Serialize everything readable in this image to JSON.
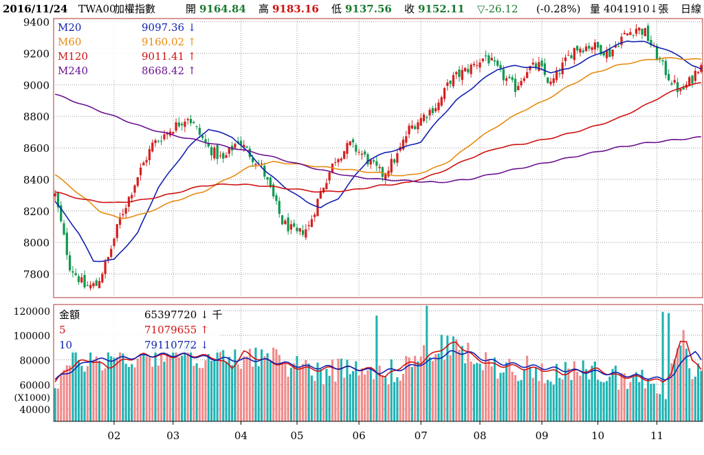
{
  "header": {
    "date": "2016/11/24",
    "symbol": "TWA00",
    "name": "加權指數",
    "open_label": "開",
    "open": "9164.84",
    "high_label": "高",
    "high": "9183.16",
    "low_label": "低",
    "low": "9137.56",
    "close_label": "收",
    "close": "9152.11",
    "change": "▽-26.12",
    "change_pct": "(-0.28%)",
    "volume_label": "量",
    "volume": "4041910↓張",
    "period": "日線"
  },
  "colors": {
    "up": "#d42020",
    "down": "#109a50",
    "up_volume": "#f08a8a",
    "down_volume": "#20b2b2",
    "m20": "#1020b0",
    "m60": "#e88a10",
    "m120": "#d01010",
    "m240": "#6a1090",
    "amt5": "#d01010",
    "amt10": "#1020b0",
    "frame": "#b03030",
    "grid": "#999999"
  },
  "legend_price": [
    {
      "name": "M20",
      "value": "9097.36",
      "arrow": "↓",
      "color": "#1020b0"
    },
    {
      "name": "M60",
      "value": "9160.02",
      "arrow": "↑",
      "color": "#e88a10"
    },
    {
      "name": "M120",
      "value": "9011.41",
      "arrow": "↑",
      "color": "#d01010"
    },
    {
      "name": "M240",
      "value": "8668.42",
      "arrow": "↑",
      "color": "#6a1090"
    }
  ],
  "legend_volume": [
    {
      "name": "金額",
      "value": "65397720",
      "arrow": "↓",
      "unit": "千",
      "color": "#000000"
    },
    {
      "name": "5",
      "value": "71079655",
      "arrow": "↑",
      "unit": "",
      "color": "#d01010"
    },
    {
      "name": "10",
      "value": "79110772",
      "arrow": "↓",
      "unit": "",
      "color": "#1020b0"
    }
  ],
  "chart_data": [
    {
      "type": "candlestick",
      "title": "",
      "yticks": [
        "9400",
        "9200",
        "9000",
        "8800",
        "8600",
        "8400",
        "8200",
        "8000",
        "7800"
      ],
      "ylim": [
        7650,
        9420
      ],
      "grid": true,
      "xtick_labels": [
        "02",
        "03",
        "04",
        "05",
        "06",
        "07",
        "08",
        "09",
        "10",
        "11"
      ],
      "xtick_positions": [
        20,
        40,
        63,
        82,
        103,
        124,
        144,
        165,
        184,
        204
      ],
      "n_bars": 220,
      "key_points": [
        [
          0,
          8300
        ],
        [
          5,
          7850
        ],
        [
          10,
          7720
        ],
        [
          14,
          7730
        ],
        [
          18,
          7900
        ],
        [
          22,
          8150
        ],
        [
          28,
          8420
        ],
        [
          33,
          8620
        ],
        [
          38,
          8700
        ],
        [
          45,
          8800
        ],
        [
          52,
          8600
        ],
        [
          57,
          8520
        ],
        [
          62,
          8650
        ],
        [
          66,
          8560
        ],
        [
          70,
          8480
        ],
        [
          73,
          8330
        ],
        [
          77,
          8130
        ],
        [
          82,
          8050
        ],
        [
          86,
          8100
        ],
        [
          90,
          8320
        ],
        [
          95,
          8530
        ],
        [
          100,
          8620
        ],
        [
          104,
          8560
        ],
        [
          108,
          8480
        ],
        [
          111,
          8430
        ],
        [
          116,
          8550
        ],
        [
          120,
          8720
        ],
        [
          126,
          8820
        ],
        [
          130,
          8880
        ],
        [
          134,
          9030
        ],
        [
          140,
          9100
        ],
        [
          146,
          9180
        ],
        [
          152,
          9050
        ],
        [
          156,
          8980
        ],
        [
          160,
          9100
        ],
        [
          164,
          9120
        ],
        [
          168,
          9000
        ],
        [
          172,
          9120
        ],
        [
          176,
          9230
        ],
        [
          182,
          9250
        ],
        [
          188,
          9200
        ],
        [
          192,
          9300
        ],
        [
          197,
          9360
        ],
        [
          200,
          9330
        ],
        [
          204,
          9180
        ],
        [
          208,
          9050
        ],
        [
          212,
          8950
        ],
        [
          216,
          9040
        ],
        [
          219,
          9152
        ]
      ],
      "series": [
        {
          "name": "M20",
          "points": [
            [
              0,
              8260
            ],
            [
              8,
              8060
            ],
            [
              13,
              7880
            ],
            [
              20,
              7890
            ],
            [
              28,
              8060
            ],
            [
              35,
              8350
            ],
            [
              45,
              8600
            ],
            [
              52,
              8720
            ],
            [
              60,
              8670
            ],
            [
              66,
              8560
            ],
            [
              72,
              8440
            ],
            [
              78,
              8350
            ],
            [
              85,
              8260
            ],
            [
              90,
              8220
            ],
            [
              96,
              8280
            ],
            [
              102,
              8430
            ],
            [
              106,
              8520
            ],
            [
              112,
              8570
            ],
            [
              118,
              8600
            ],
            [
              124,
              8640
            ],
            [
              130,
              8780
            ],
            [
              136,
              8900
            ],
            [
              144,
              9020
            ],
            [
              150,
              9100
            ],
            [
              156,
              9120
            ],
            [
              162,
              9110
            ],
            [
              168,
              9080
            ],
            [
              174,
              9100
            ],
            [
              180,
              9160
            ],
            [
              188,
              9230
            ],
            [
              194,
              9280
            ],
            [
              200,
              9270
            ],
            [
              206,
              9230
            ],
            [
              212,
              9180
            ],
            [
              216,
              9120
            ],
            [
              219,
              9097
            ]
          ]
        },
        {
          "name": "M60",
          "points": [
            [
              0,
              8430
            ],
            [
              8,
              8310
            ],
            [
              15,
              8200
            ],
            [
              22,
              8150
            ],
            [
              30,
              8180
            ],
            [
              40,
              8260
            ],
            [
              50,
              8320
            ],
            [
              58,
              8400
            ],
            [
              66,
              8480
            ],
            [
              74,
              8510
            ],
            [
              80,
              8500
            ],
            [
              90,
              8480
            ],
            [
              100,
              8460
            ],
            [
              110,
              8440
            ],
            [
              118,
              8420
            ],
            [
              126,
              8450
            ],
            [
              134,
              8520
            ],
            [
              142,
              8640
            ],
            [
              150,
              8740
            ],
            [
              158,
              8830
            ],
            [
              166,
              8900
            ],
            [
              174,
              8990
            ],
            [
              182,
              9070
            ],
            [
              190,
              9120
            ],
            [
              198,
              9150
            ],
            [
              206,
              9170
            ],
            [
              213,
              9165
            ],
            [
              219,
              9160
            ]
          ]
        },
        {
          "name": "M120",
          "points": [
            [
              0,
              8320
            ],
            [
              10,
              8270
            ],
            [
              20,
              8250
            ],
            [
              30,
              8270
            ],
            [
              40,
              8310
            ],
            [
              50,
              8360
            ],
            [
              60,
              8370
            ],
            [
              70,
              8360
            ],
            [
              80,
              8340
            ],
            [
              90,
              8320
            ],
            [
              100,
              8330
            ],
            [
              110,
              8360
            ],
            [
              120,
              8380
            ],
            [
              130,
              8440
            ],
            [
              140,
              8530
            ],
            [
              150,
              8600
            ],
            [
              160,
              8630
            ],
            [
              170,
              8670
            ],
            [
              180,
              8720
            ],
            [
              190,
              8780
            ],
            [
              198,
              8850
            ],
            [
              206,
              8930
            ],
            [
              213,
              8990
            ],
            [
              219,
              9011
            ]
          ]
        },
        {
          "name": "M240",
          "points": [
            [
              0,
              8940
            ],
            [
              10,
              8870
            ],
            [
              20,
              8800
            ],
            [
              30,
              8730
            ],
            [
              40,
              8680
            ],
            [
              50,
              8640
            ],
            [
              60,
              8600
            ],
            [
              70,
              8560
            ],
            [
              80,
              8510
            ],
            [
              90,
              8460
            ],
            [
              100,
              8420
            ],
            [
              110,
              8400
            ],
            [
              120,
              8390
            ],
            [
              130,
              8380
            ],
            [
              140,
              8400
            ],
            [
              150,
              8440
            ],
            [
              160,
              8480
            ],
            [
              170,
              8520
            ],
            [
              180,
              8560
            ],
            [
              190,
              8600
            ],
            [
              200,
              8630
            ],
            [
              210,
              8650
            ],
            [
              219,
              8668
            ]
          ]
        }
      ]
    },
    {
      "type": "bar",
      "ylabel": "(X1000)",
      "yticks": [
        "120000",
        "100000",
        "80000",
        "60000",
        "40000"
      ],
      "ylim": [
        30000,
        125000
      ],
      "grid": true,
      "key_points": [
        [
          0,
          62000
        ],
        [
          6,
          78000
        ],
        [
          12,
          80000
        ],
        [
          20,
          82000
        ],
        [
          26,
          80000
        ],
        [
          34,
          85000
        ],
        [
          44,
          85000
        ],
        [
          52,
          82000
        ],
        [
          60,
          78000
        ],
        [
          66,
          86000
        ],
        [
          74,
          79000
        ],
        [
          80,
          76000
        ],
        [
          86,
          75000
        ],
        [
          92,
          70000
        ],
        [
          98,
          74000
        ],
        [
          106,
          78000
        ],
        [
          110,
          66000
        ],
        [
          116,
          72000
        ],
        [
          122,
          80000
        ],
        [
          128,
          87000
        ],
        [
          134,
          92000
        ],
        [
          140,
          84000
        ],
        [
          146,
          76000
        ],
        [
          152,
          75000
        ],
        [
          160,
          73000
        ],
        [
          168,
          71000
        ],
        [
          176,
          68000
        ],
        [
          184,
          70000
        ],
        [
          190,
          67000
        ],
        [
          196,
          65000
        ],
        [
          202,
          63000
        ],
        [
          207,
          58000
        ],
        [
          210,
          75000
        ],
        [
          213,
          95000
        ],
        [
          216,
          72000
        ],
        [
          219,
          65000
        ]
      ],
      "spikes": [
        [
          109,
          116000
        ],
        [
          126,
          124000
        ],
        [
          206,
          119000
        ],
        [
          208,
          118000
        ]
      ],
      "series": [
        {
          "name": "5",
          "points": [
            [
              0,
              62000
            ],
            [
              4,
              72000
            ],
            [
              8,
              78000
            ],
            [
              12,
              80000
            ],
            [
              18,
              74000
            ],
            [
              24,
              80000
            ],
            [
              30,
              84000
            ],
            [
              38,
              83000
            ],
            [
              46,
              84000
            ],
            [
              54,
              82000
            ],
            [
              60,
              74000
            ],
            [
              64,
              86000
            ],
            [
              70,
              80000
            ],
            [
              78,
              76000
            ],
            [
              84,
              73000
            ],
            [
              90,
              72000
            ],
            [
              96,
              74000
            ],
            [
              102,
              73000
            ],
            [
              108,
              72000
            ],
            [
              112,
              66000
            ],
            [
              118,
              76000
            ],
            [
              124,
              78000
            ],
            [
              130,
              88000
            ],
            [
              136,
              94000
            ],
            [
              142,
              82000
            ],
            [
              148,
              76000
            ],
            [
              154,
              75000
            ],
            [
              160,
              73000
            ],
            [
              166,
              72000
            ],
            [
              172,
              69000
            ],
            [
              178,
              71000
            ],
            [
              184,
              72000
            ],
            [
              190,
              67000
            ],
            [
              196,
              66000
            ],
            [
              202,
              64000
            ],
            [
              206,
              62000
            ],
            [
              209,
              70000
            ],
            [
              212,
              94000
            ],
            [
              214,
              96000
            ],
            [
              216,
              80000
            ],
            [
              219,
              71000
            ]
          ]
        },
        {
          "name": "10",
          "points": [
            [
              0,
              64000
            ],
            [
              6,
              72000
            ],
            [
              12,
              80000
            ],
            [
              18,
              80000
            ],
            [
              26,
              82000
            ],
            [
              34,
              84000
            ],
            [
              44,
              84000
            ],
            [
              54,
              81000
            ],
            [
              62,
              80000
            ],
            [
              70,
              80000
            ],
            [
              78,
              77000
            ],
            [
              86,
              74000
            ],
            [
              94,
              74000
            ],
            [
              102,
              73000
            ],
            [
              110,
              70000
            ],
            [
              118,
              73000
            ],
            [
              126,
              78000
            ],
            [
              134,
              86000
            ],
            [
              140,
              86000
            ],
            [
              146,
              80000
            ],
            [
              152,
              77000
            ],
            [
              160,
              75000
            ],
            [
              168,
              73000
            ],
            [
              176,
              71000
            ],
            [
              184,
              70000
            ],
            [
              192,
              68000
            ],
            [
              200,
              66000
            ],
            [
              206,
              64000
            ],
            [
              210,
              68000
            ],
            [
              214,
              84000
            ],
            [
              217,
              86000
            ],
            [
              219,
              79000
            ]
          ]
        }
      ]
    }
  ]
}
